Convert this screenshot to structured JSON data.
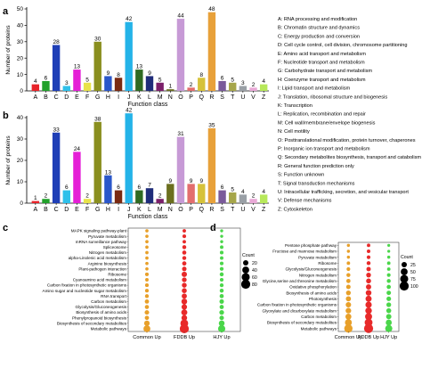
{
  "panel_labels": [
    "a",
    "b",
    "c",
    "d"
  ],
  "colors": [
    "#e8242a",
    "#22a12b",
    "#1f3fb6",
    "#2fc0ea",
    "#e51fd6",
    "#e8e34a",
    "#8a8f1f",
    "#2a57c9",
    "#7a2a12",
    "#24b3e8",
    "#2f6a22",
    "#1f2c7a",
    "#7b1f6a",
    "#6b6f1f",
    "#c79ad6",
    "#e36e6e",
    "#d6c23a",
    "#e8a13a",
    "#7a5a9a",
    "#a6a64a",
    "#9aa0a6",
    "#e8a8d6",
    "#b7e85a",
    "#c67a3a"
  ],
  "legend_items": [
    "A: RNA processing and modification",
    "B: Chromatin structure and dynamics",
    "C: Energy production and conversion",
    "D: Cell cycle control, cell division, chromosome partitioning",
    "E: Amino acid transport and metabolism",
    "F: Nucleotide transport and metabolism",
    "G: Carbohydrate transport and metabolism",
    "H: Coenzyme transport and metabolism",
    "I: Lipid transport and metabolism",
    "J: Translation, ribosomal structure and biogenesis",
    "K: Transcription",
    "L: Replication, recombination and repair",
    "M: Cell wall/membrane/envelope biogenesis",
    "N: Cell motility",
    "O: Posttranslational modification, protein turnover, chaperones",
    "P: Inorganic ion transport and metabolism",
    "Q: Secondary metabolites biosynthesis, transport and catabolism",
    "R: General function prediction only",
    "S: Function unknown",
    "T: Signal transduction mechanisms",
    "U: Intracellular trafficking, secretion, and vesicular transport",
    "V: Defense mechanisms",
    "Z: Cytoskeleton"
  ],
  "chart_data": [
    {
      "type": "bar",
      "panel": "a",
      "categories": [
        "A",
        "B",
        "C",
        "D",
        "E",
        "F",
        "G",
        "H",
        "I",
        "J",
        "K",
        "L",
        "M",
        "N",
        "O",
        "P",
        "Q",
        "R",
        "S",
        "T",
        "U",
        "V",
        "Z"
      ],
      "values": [
        4,
        6,
        28,
        3,
        13,
        5,
        30,
        9,
        8,
        42,
        13,
        9,
        5,
        1,
        44,
        2,
        8,
        48,
        6,
        5,
        3,
        2,
        4
      ],
      "xlabel": "Function class",
      "ylabel": "Number of proteins",
      "ylim": [
        0,
        50
      ],
      "yticks": [
        0,
        10,
        20,
        30,
        40,
        50
      ]
    },
    {
      "type": "bar",
      "panel": "b",
      "categories": [
        "A",
        "B",
        "C",
        "D",
        "E",
        "F",
        "G",
        "H",
        "I",
        "J",
        "K",
        "L",
        "M",
        "N",
        "O",
        "P",
        "Q",
        "R",
        "S",
        "T",
        "U",
        "V",
        "Z"
      ],
      "values": [
        1,
        2,
        33,
        6,
        24,
        2,
        38,
        13,
        6,
        42,
        6,
        7,
        2,
        9,
        31,
        9,
        9,
        35,
        6,
        5,
        4,
        2,
        4
      ],
      "xlabel": "Function class",
      "ylabel": "Number of proteins",
      "ylim": [
        0,
        40
      ],
      "yticks": [
        0,
        10,
        20,
        30,
        40
      ]
    },
    {
      "type": "scatter",
      "panel": "c",
      "columns": [
        "Common  Up",
        "FDDB  Up",
        "HJY  Up"
      ],
      "column_colors": [
        "#e8a02a",
        "#e82a2a",
        "#4ad64a"
      ],
      "pathways": [
        "MAPK signaling pathway-plant",
        "Pyruvate metabolism",
        "mRNA surveillance pathway",
        "Spliceosome",
        "Nitrogen metabolism",
        "alpha-Linolenic acid metabolism",
        "Arginine biosynthesis",
        "Plant-pathogen interaction",
        "Ribosome",
        "Cyanoamino acid metabolism",
        "Carbon fixation in photosynthetic organisms",
        "Amino sugar and nucleotide sugar metabolism",
        "RNA transport",
        "Carbon metabolism",
        "Glycolysis/Gluconeogenesis",
        "Biosynthesis of amino acids",
        "Phenylpropanoid biosynthesis",
        "Biosynthesis of secondary metabolites",
        "Metabolic pathways"
      ],
      "counts": [
        [
          4,
          5,
          3
        ],
        [
          4,
          6,
          3
        ],
        [
          4,
          5,
          3
        ],
        [
          4,
          8,
          5
        ],
        [
          4,
          9,
          6
        ],
        [
          4,
          8,
          5
        ],
        [
          4,
          10,
          6
        ],
        [
          4,
          12,
          7
        ],
        [
          6,
          20,
          8
        ],
        [
          5,
          14,
          6
        ],
        [
          6,
          15,
          7
        ],
        [
          6,
          16,
          8
        ],
        [
          7,
          18,
          9
        ],
        [
          10,
          25,
          12
        ],
        [
          9,
          22,
          10
        ],
        [
          12,
          28,
          14
        ],
        [
          10,
          24,
          12
        ],
        [
          22,
          55,
          25
        ],
        [
          40,
          80,
          45
        ]
      ],
      "size_legend_title": "Count",
      "size_legend_values": [
        20,
        40,
        60,
        80
      ]
    },
    {
      "type": "scatter",
      "panel": "d",
      "columns": [
        "Common  Up",
        "FDDB  Up",
        "HJY  Up"
      ],
      "column_colors": [
        "#e8a02a",
        "#e82a2a",
        "#4ad64a"
      ],
      "pathways": [
        "Pentose phosphate pathway",
        "Fructose and mannose metabolism",
        "Pyruvate metabolism",
        "Ribosome",
        "Glycolysis/Gluconeogenesis",
        "Nitrogen metabolism",
        "Glycine,serine and threonine metabolism",
        "Oxidative phosphorylation",
        "Biosynthesis of amino acids",
        "Photosynthesis",
        "Carbon fixation in photosynthetic organisms",
        "Glyoxylate and dicarboxylate metabolism",
        "Carbon metabolism",
        "Biosynthesis of secondary metabolites",
        "Metabolic pathways"
      ],
      "counts": [
        [
          4,
          6,
          3
        ],
        [
          4,
          7,
          3
        ],
        [
          4,
          8,
          4
        ],
        [
          6,
          10,
          6
        ],
        [
          8,
          14,
          6
        ],
        [
          10,
          18,
          8
        ],
        [
          12,
          20,
          10
        ],
        [
          14,
          24,
          12
        ],
        [
          18,
          30,
          14
        ],
        [
          22,
          36,
          16
        ],
        [
          26,
          40,
          18
        ],
        [
          28,
          44,
          20
        ],
        [
          34,
          52,
          24
        ],
        [
          50,
          70,
          35
        ],
        [
          80,
          100,
          55
        ]
      ],
      "size_legend_title": "Count",
      "size_legend_values": [
        25,
        50,
        75,
        100
      ]
    }
  ]
}
